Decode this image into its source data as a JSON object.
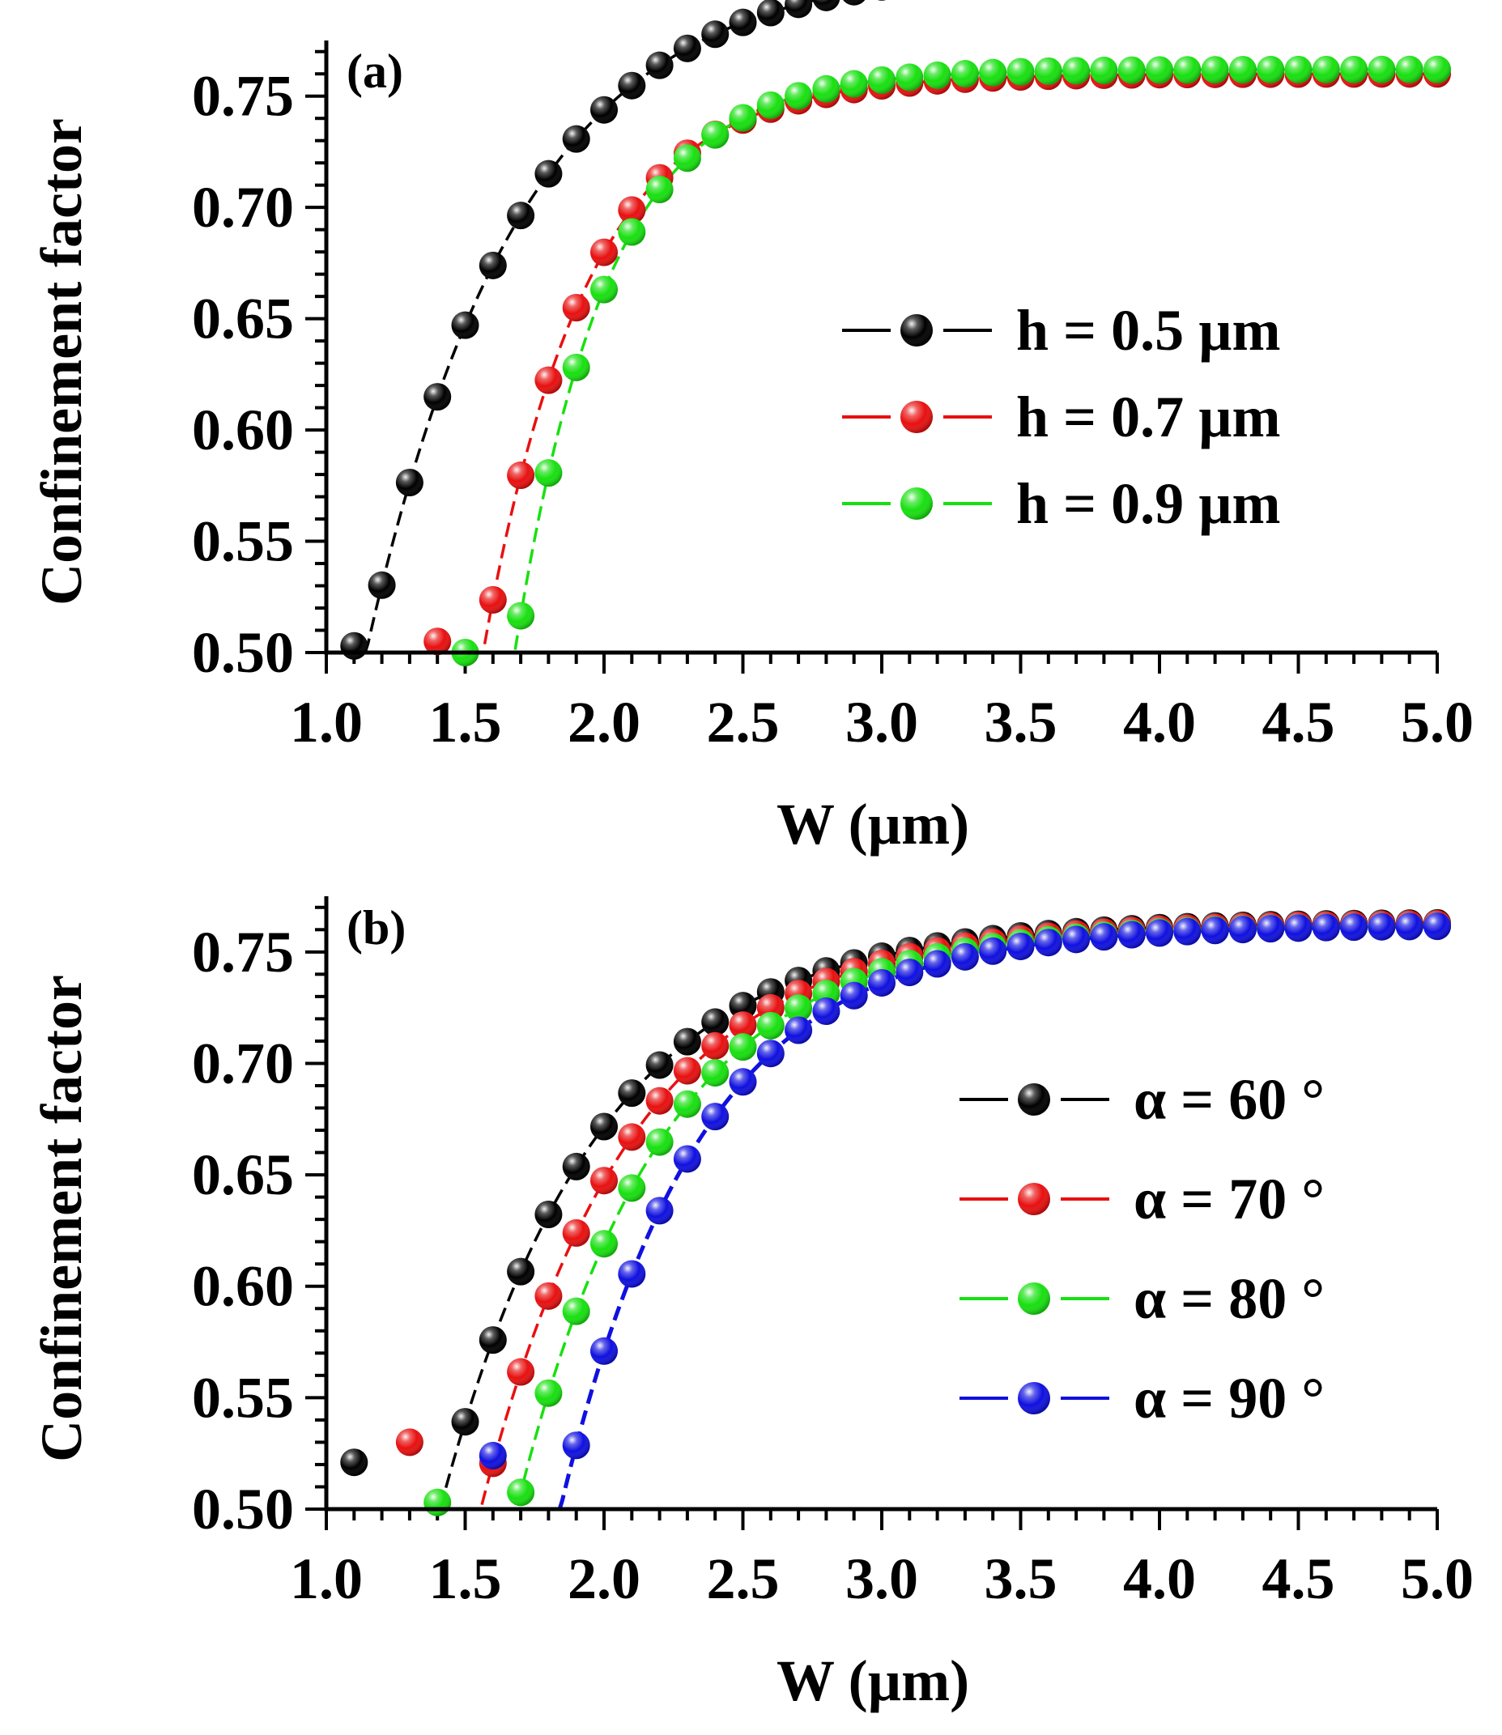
{
  "chart_data": [
    {
      "type": "line",
      "panel": "(a)",
      "xlabel": "W (µm)",
      "ylabel": "Confinement factor",
      "xlim": [
        1.0,
        5.0
      ],
      "ylim": [
        0.5,
        0.775
      ],
      "xticks": [
        "1.0",
        "1.5",
        "2.0",
        "2.5",
        "3.0",
        "3.5",
        "4.0",
        "4.5",
        "5.0"
      ],
      "yticks": [
        "0.50",
        "0.55",
        "0.60",
        "0.65",
        "0.70",
        "0.75"
      ],
      "legend_position": "center-right",
      "series": [
        {
          "name": "h = 0.5 µm",
          "color": "#000000",
          "start": 1.1,
          "curve": {
            "wc": 1.06,
            "a": 0.81,
            "b": 0.36,
            "c": 0.555
          },
          "first_value": 0.503
        },
        {
          "name": "h = 0.7 µm",
          "color": "#e81010",
          "start": 1.4,
          "curve": {
            "wc": 1.37,
            "a": 0.76,
            "b": 0.44,
            "c": 0.37
          },
          "first_value": 0.505
        },
        {
          "name": "h = 0.9 µm",
          "color": "#18e010",
          "start": 1.5,
          "curve": {
            "wc": 1.5,
            "a": 0.762,
            "b": 0.45,
            "c": 0.33
          },
          "first_value": 0.5
        }
      ]
    },
    {
      "type": "line",
      "panel": "(b)",
      "xlabel": "W (µm)",
      "ylabel": "Confinement factor",
      "xlim": [
        1.0,
        5.0
      ],
      "ylim": [
        0.5,
        0.775
      ],
      "xticks": [
        "1.0",
        "1.5",
        "2.0",
        "2.5",
        "3.0",
        "3.5",
        "4.0",
        "4.5",
        "5.0"
      ],
      "yticks": [
        "0.50",
        "0.55",
        "0.60",
        "0.65",
        "0.70",
        "0.75"
      ],
      "legend_position": "center-right",
      "series": [
        {
          "name": "α = 60 °",
          "color": "#000000",
          "start": 1.1,
          "curve": {
            "wc": 1.04,
            "a": 0.7635,
            "b": 0.51,
            "c": 0.56
          },
          "first_value": 0.521
        },
        {
          "name": "α = 70 °",
          "color": "#e81010",
          "start": 1.3,
          "curve": {
            "wc": 1.22,
            "a": 0.763,
            "b": 0.49,
            "c": 0.54
          },
          "first_value": 0.53
        },
        {
          "name": "α = 80 °",
          "color": "#18e010",
          "start": 1.4,
          "curve": {
            "wc": 1.37,
            "a": 0.762,
            "b": 0.48,
            "c": 0.52
          },
          "first_value": 0.503
        },
        {
          "name": "α = 90 °",
          "color": "#1010e0",
          "start": 1.6,
          "curve": {
            "wc": 1.55,
            "a": 0.762,
            "b": 0.47,
            "c": 0.5
          },
          "first_value": 0.524
        }
      ]
    }
  ]
}
